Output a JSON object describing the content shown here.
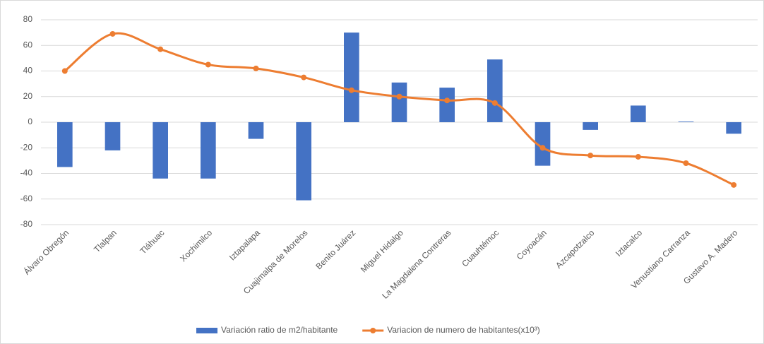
{
  "chart_data": {
    "type": "bar-line",
    "categories": [
      "Álvaro Obregón",
      "Tlalpan",
      "Tláhuac",
      "Xochimilco",
      "Iztapalapa",
      "Cuajimalpa de Morelos",
      "Benito Juárez",
      "Miguel Hidalgo",
      "La Magdalena Contreras",
      "Cuauhtémoc",
      "Coyoacán",
      "Azcapotzalco",
      "Iztacalco",
      "Venustiano Carranza",
      "Gustavo A. Madero"
    ],
    "series": [
      {
        "name": "Variación ratio de m2/habitante",
        "type": "bar",
        "color": "#4472c4",
        "values": [
          -35,
          -22,
          -44,
          -44,
          -13,
          -61,
          70,
          31,
          27,
          49,
          -34,
          -6,
          13,
          0.5,
          -9
        ]
      },
      {
        "name": "Variacion de numero de habitantes(x10³)",
        "type": "line",
        "color": "#ed7d31",
        "smooth": true,
        "values": [
          40,
          69,
          57,
          45,
          42,
          35,
          25,
          20,
          17,
          15,
          -20,
          -26,
          -27,
          -32,
          -49
        ]
      }
    ],
    "ylim": [
      -80,
      80
    ],
    "yticks": [
      -80,
      -60,
      -40,
      -20,
      0,
      20,
      40,
      60,
      80
    ],
    "grid": true,
    "legend": "bottom"
  }
}
